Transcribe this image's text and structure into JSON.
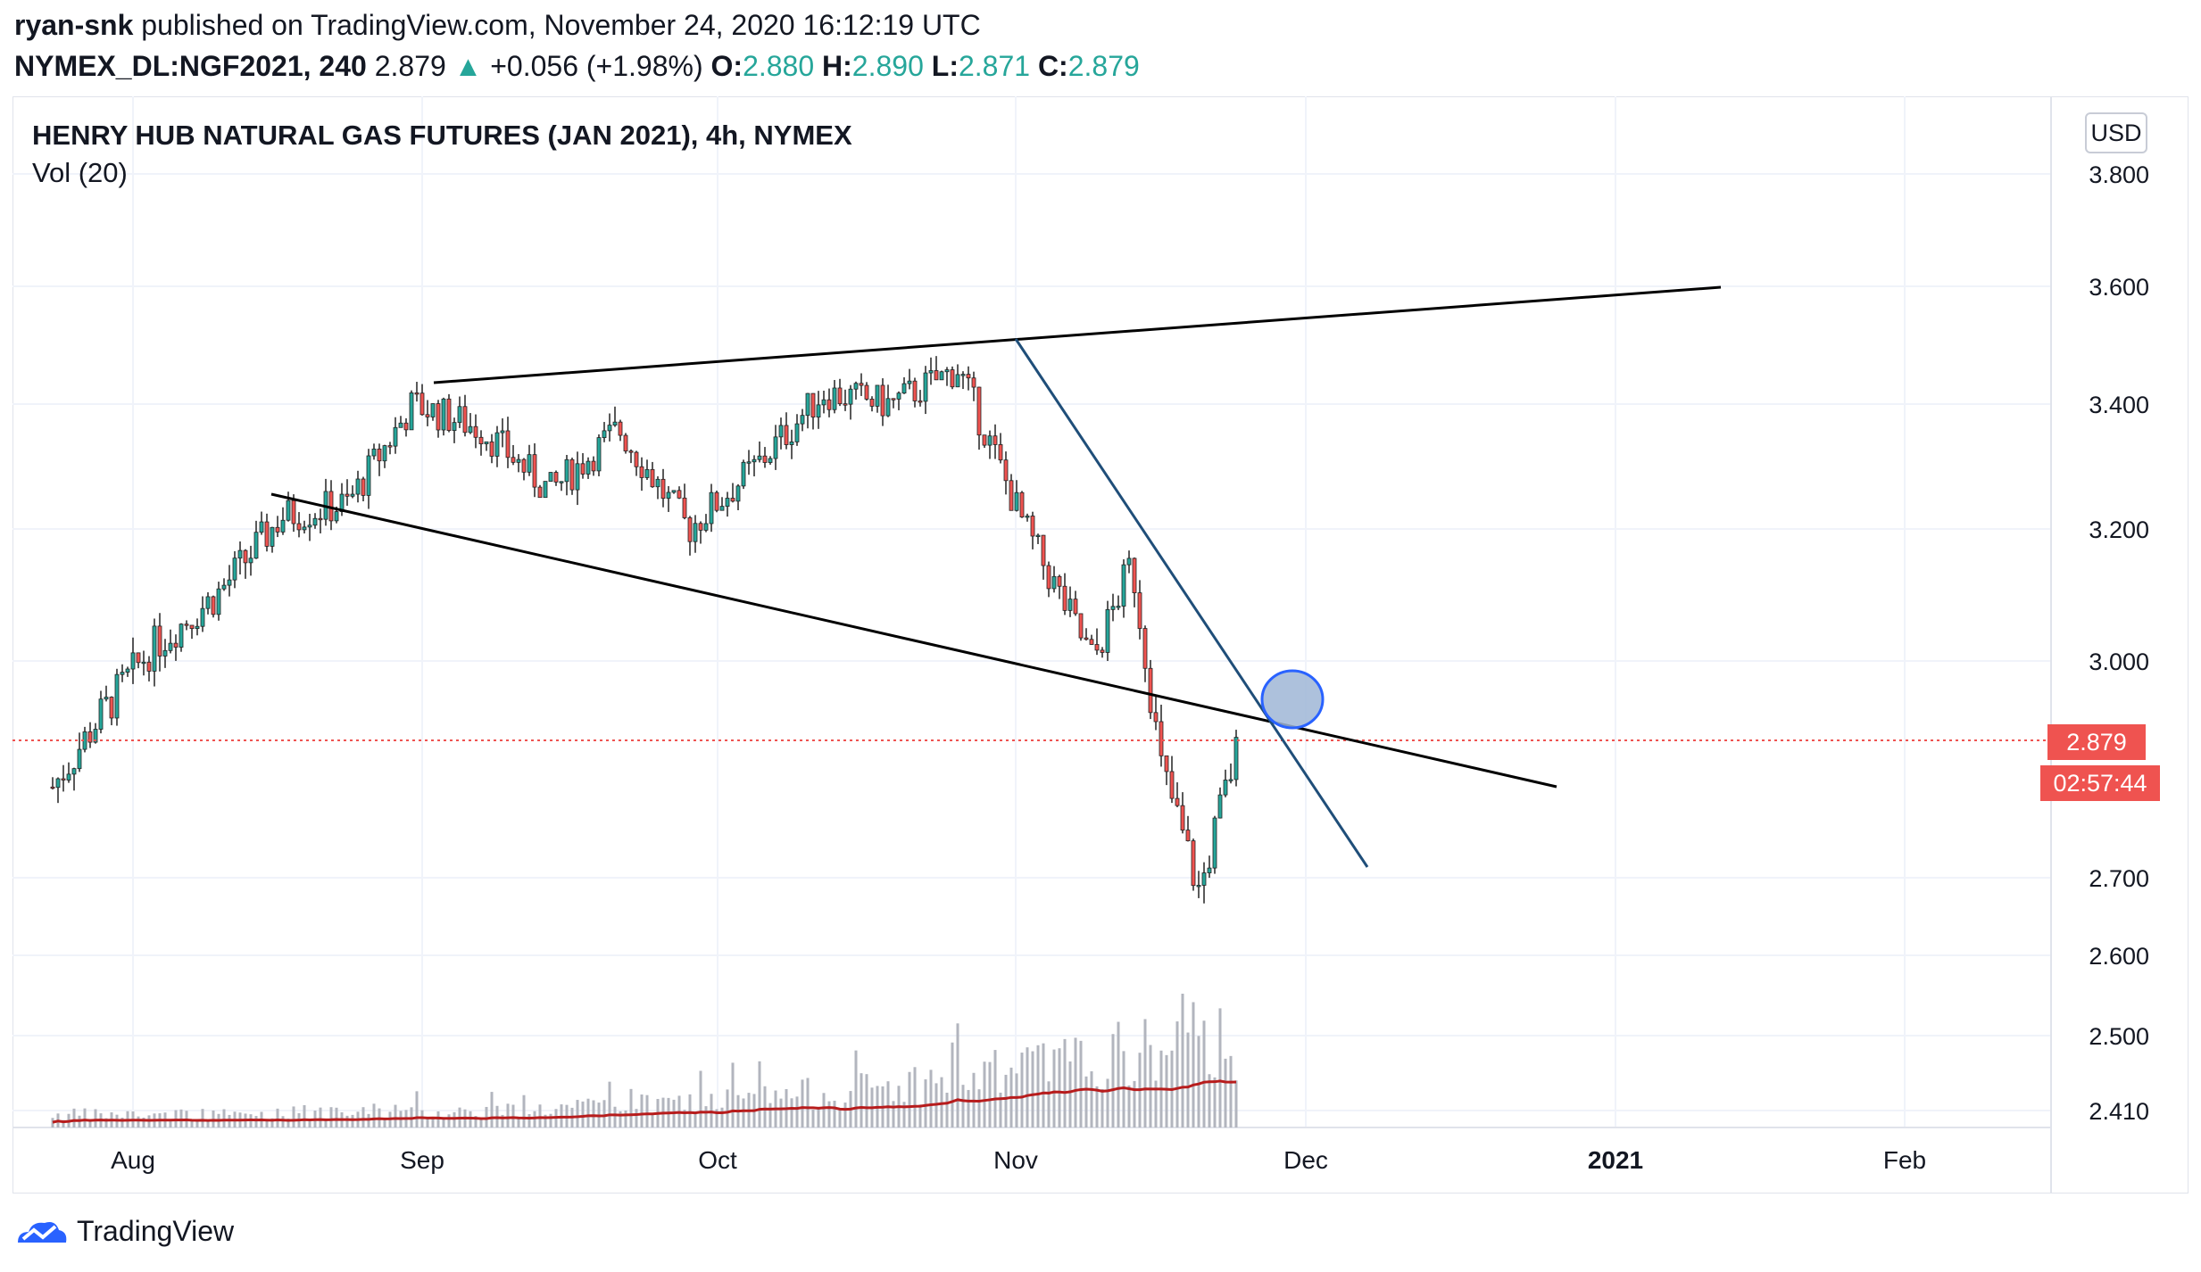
{
  "header": {
    "author": "ryan-snk",
    "published": "published on TradingView.com, November 24, 2020 16:12:19 UTC",
    "symbol": "NYMEX_DL:NGF2021, 240",
    "last": "2.879",
    "change_arrow": "▲",
    "change": "+0.056 (+1.98%)",
    "open_label": "O:",
    "open": "2.880",
    "high_label": "H:",
    "high": "2.890",
    "low_label": "L:",
    "low": "2.871",
    "close_label": "C:",
    "close": "2.879"
  },
  "chart_title": "HENRY HUB NATURAL GAS FUTURES (JAN 2021), 4h, NYMEX",
  "indicator_label": "Vol (20)",
  "currency_button": "USD",
  "price_tag": "2.879",
  "countdown_tag": "02:57:44",
  "footer_brand": "TradingView",
  "colors": {
    "up": "#26a69a",
    "down": "#ef5350",
    "ma": "#b71c1c",
    "trend_blue": "#1f4e79",
    "ellipse": "#9fb6d6"
  },
  "chart_data": {
    "type": "candlestick",
    "title": "HENRY HUB NATURAL GAS FUTURES (JAN 2021), 4h, NYMEX",
    "x_ticks": [
      "Aug",
      "Sep",
      "Oct",
      "Nov",
      "Dec",
      "2021",
      "Feb"
    ],
    "y_ticks": [
      "3.800",
      "3.600",
      "3.400",
      "3.200",
      "3.000",
      "2.700",
      "2.600",
      "2.500",
      "2.410"
    ],
    "ylim": [
      2.39,
      3.86
    ],
    "last_price": 2.879,
    "closes_weekly": [
      {
        "date": "2020-07-20",
        "close": 2.82
      },
      {
        "date": "2020-07-27",
        "close": 2.92
      },
      {
        "date": "2020-08-03",
        "close": 3.02
      },
      {
        "date": "2020-08-10",
        "close": 3.1
      },
      {
        "date": "2020-08-17",
        "close": 3.22
      },
      {
        "date": "2020-08-24",
        "close": 3.24
      },
      {
        "date": "2020-08-31",
        "close": 3.4
      },
      {
        "date": "2020-09-07",
        "close": 3.36
      },
      {
        "date": "2020-09-14",
        "close": 3.26
      },
      {
        "date": "2020-09-21",
        "close": 3.36
      },
      {
        "date": "2020-09-28",
        "close": 3.2
      },
      {
        "date": "2020-10-05",
        "close": 3.3
      },
      {
        "date": "2020-10-12",
        "close": 3.42
      },
      {
        "date": "2020-10-19",
        "close": 3.4
      },
      {
        "date": "2020-10-26",
        "close": 3.46
      },
      {
        "date": "2020-11-02",
        "close": 3.2
      },
      {
        "date": "2020-11-09",
        "close": 3.0
      },
      {
        "date": "2020-11-13",
        "close": 3.15
      },
      {
        "date": "2020-11-16",
        "close": 2.85
      },
      {
        "date": "2020-11-20",
        "close": 2.68
      },
      {
        "date": "2020-11-24",
        "close": 2.879
      }
    ],
    "volume_ma_label": "Vol (20)"
  }
}
